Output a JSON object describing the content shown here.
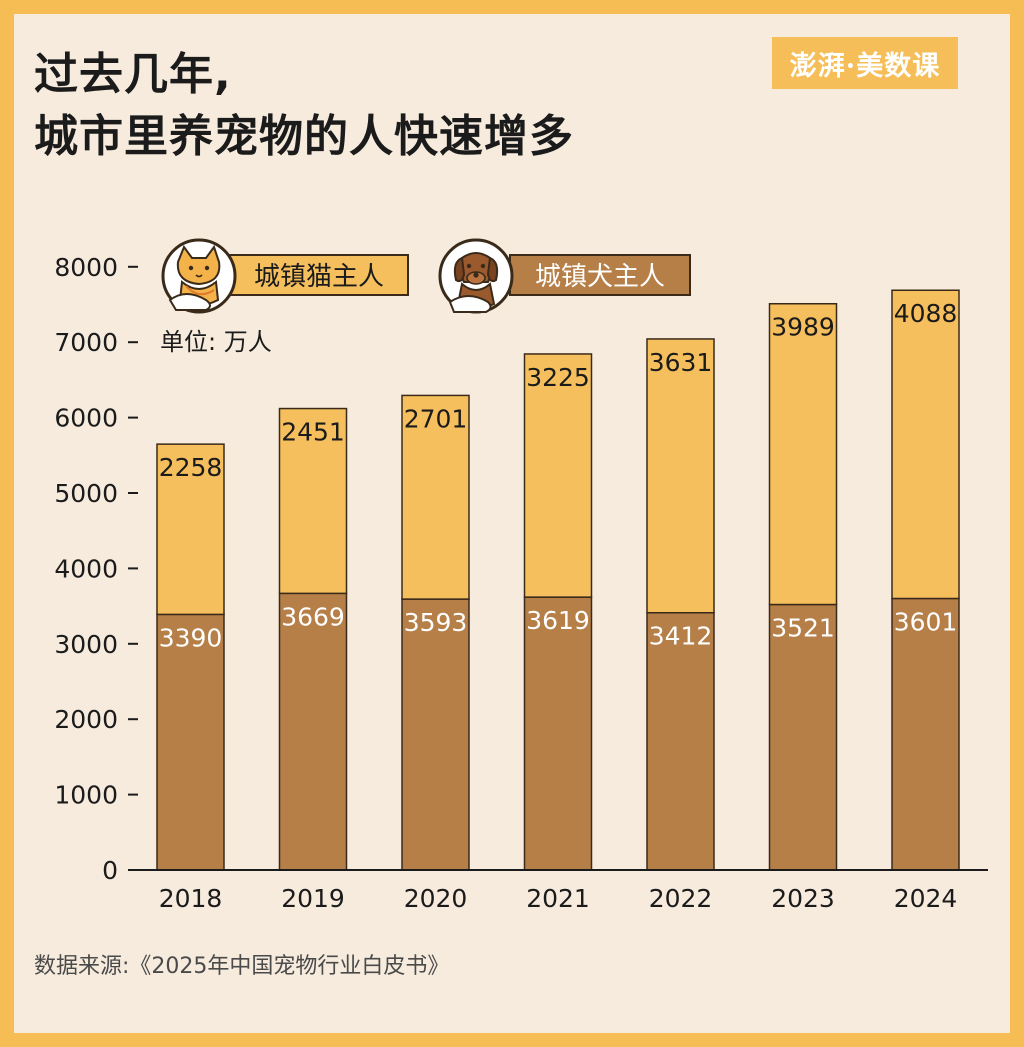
{
  "title_lines": [
    "过去几年,",
    "城市里养宠物的人快速增多"
  ],
  "logo_text": "澎湃·美数课",
  "source_text": "数据来源:《2025年中国宠物行业白皮书》",
  "chart_data": {
    "type": "bar",
    "stacked": true,
    "categories": [
      "2018",
      "2019",
      "2020",
      "2021",
      "2022",
      "2023",
      "2024"
    ],
    "series": [
      {
        "name": "城镇犬主人",
        "values": [
          3390,
          3669,
          3593,
          3619,
          3412,
          3521,
          3601
        ],
        "color": "#B67F48"
      },
      {
        "name": "城镇猫主人",
        "values": [
          2258,
          2451,
          2701,
          3225,
          3631,
          3989,
          4088
        ],
        "color": "#F6BF5E"
      }
    ],
    "unit_label": "单位: 万人",
    "ylim": [
      0,
      8000
    ],
    "yticks": [
      0,
      1000,
      2000,
      3000,
      4000,
      5000,
      6000,
      7000,
      8000
    ],
    "grid": false,
    "legend_position": "top-left",
    "legend_order": [
      "城镇猫主人",
      "城镇犬主人"
    ],
    "legend_icons": [
      "cat-owner-icon",
      "dog-owner-icon"
    ]
  }
}
